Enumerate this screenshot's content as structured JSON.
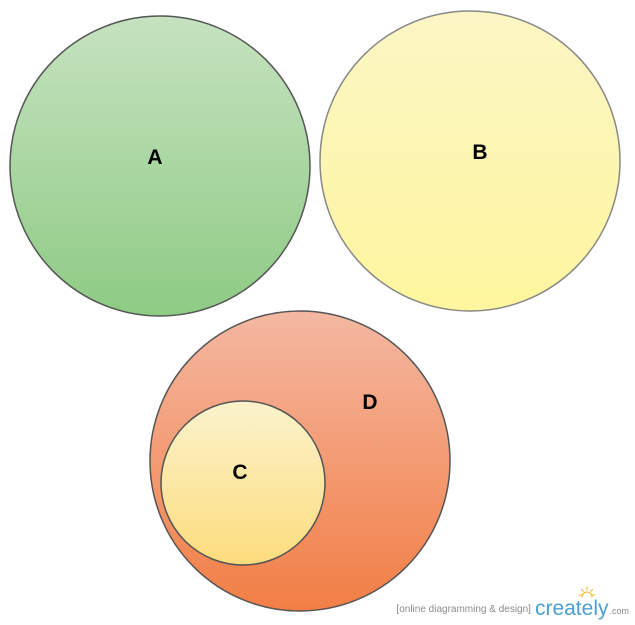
{
  "diagram": {
    "circles": [
      {
        "id": "A",
        "label": "A",
        "fill_top": "#c6e2c0",
        "fill_bottom": "#8ecb84",
        "stroke": "#555555"
      },
      {
        "id": "B",
        "label": "B",
        "fill_top": "#fbf6c5",
        "fill_bottom": "#fff69e",
        "stroke": "#888888"
      },
      {
        "id": "D",
        "label": "D",
        "fill_top": "#f4b8a2",
        "fill_bottom": "#f27e45",
        "stroke": "#555555"
      },
      {
        "id": "C",
        "label": "C",
        "fill_top": "#fbf3cd",
        "fill_bottom": "#fddc7c",
        "stroke": "#555555"
      }
    ]
  },
  "watermark": {
    "tagline": "[online diagramming & design]",
    "brand": "creately",
    "domain": ".com",
    "brand_color": "#4a9fd5",
    "sun_color": "#f5c242"
  }
}
